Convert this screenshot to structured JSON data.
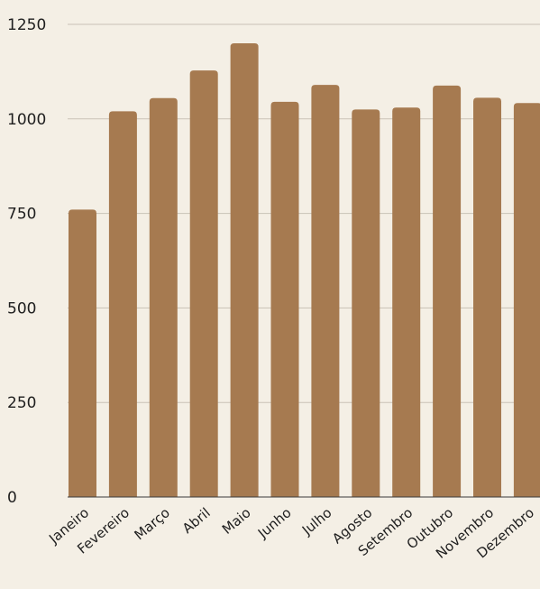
{
  "chart_data": {
    "type": "bar",
    "categories": [
      "Janeiro",
      "Fevereiro",
      "Março",
      "Abril",
      "Maio",
      "Junho",
      "Julho",
      "Agosto",
      "Setembro",
      "Outubro",
      "Novembro",
      "Dezembro"
    ],
    "values": [
      760,
      1020,
      1055,
      1128,
      1200,
      1045,
      1090,
      1025,
      1030,
      1088,
      1056,
      1042
    ],
    "title": "",
    "xlabel": "",
    "ylabel": "",
    "ylim": [
      0,
      1250
    ],
    "yticks": [
      0,
      250,
      500,
      750,
      1000,
      1250
    ],
    "grid": true,
    "bar_color": "#a67a50",
    "grid_color": "#c9c2b6",
    "background": "#f4efe5"
  }
}
